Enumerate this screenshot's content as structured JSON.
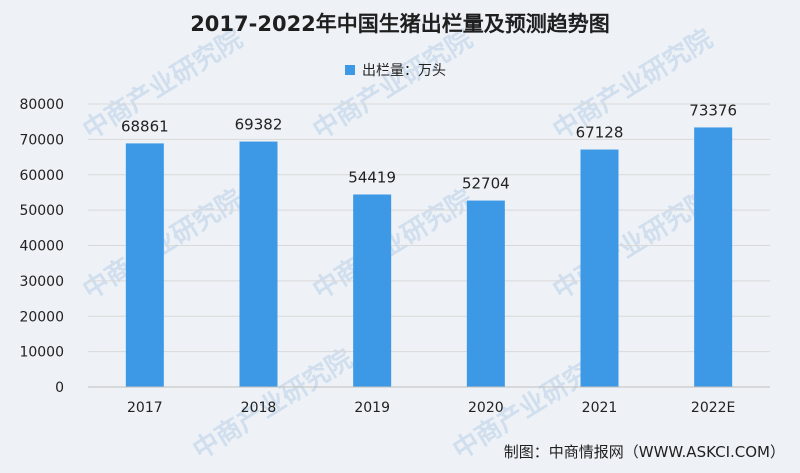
{
  "chart_data": {
    "type": "bar",
    "title": "2017-2022年中国生猪出栏量及预测趋势图",
    "legend": "出栏量：万头",
    "categories": [
      "2017",
      "2018",
      "2019",
      "2020",
      "2021",
      "2022E"
    ],
    "series": [
      {
        "name": "出栏量：万头",
        "values": [
          68861,
          69382,
          54419,
          52704,
          67128,
          73376
        ]
      }
    ],
    "ylim": [
      0,
      80000
    ],
    "yticks": [
      "0",
      "10000",
      "20000",
      "30000",
      "40000",
      "50000",
      "60000",
      "70000",
      "80000"
    ],
    "grid": true,
    "legend_position": "top-center",
    "colors": {
      "bar": "#3d98e6"
    }
  },
  "source": "制图：中商情报网（WWW.ASKCI.COM）",
  "watermark": "中商产业研究院"
}
